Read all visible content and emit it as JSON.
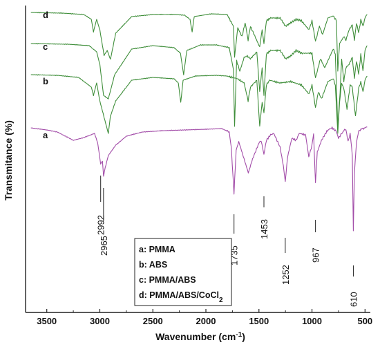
{
  "chart_data": {
    "type": "line",
    "xlabel": "Wavenumber (cm",
    "xlabel_sup": "-1",
    "xlabel_end": ")",
    "ylabel": "Transmitance (%)",
    "xlim": [
      3700,
      450
    ],
    "x_reversed": true,
    "xticks": [
      3500,
      3000,
      2500,
      2000,
      1500,
      1000,
      500
    ],
    "grid": false,
    "colors": {
      "a": "#a24ca8",
      "bcd": "#3f8e3a",
      "axis": "#222222"
    },
    "series": [
      {
        "name": "a",
        "color": "#a24ca8",
        "baseline": 0.0,
        "x": [
          3650,
          3500,
          3400,
          3300,
          3250,
          3150,
          3050,
          3020,
          2992,
          2975,
          2965,
          2950,
          2920,
          2850,
          2750,
          2600,
          2400,
          2200,
          2000,
          1850,
          1780,
          1760,
          1735,
          1715,
          1690,
          1640,
          1600,
          1560,
          1500,
          1480,
          1453,
          1430,
          1390,
          1360,
          1300,
          1270,
          1252,
          1230,
          1190,
          1150,
          1120,
          1060,
          1030,
          1000,
          985,
          967,
          950,
          910,
          860,
          840,
          810,
          770,
          750,
          720,
          700,
          680,
          660,
          640,
          620,
          610,
          600,
          580,
          560,
          540,
          520,
          500,
          480
        ],
        "y": [
          0,
          -3,
          -6,
          -14,
          -18,
          -14,
          -8,
          -22,
          -52,
          -48,
          -70,
          -58,
          -40,
          -25,
          -12,
          -6,
          -4,
          -3,
          -2,
          -1,
          -6,
          -30,
          -95,
          -32,
          -20,
          -45,
          -65,
          -45,
          -22,
          -18,
          -38,
          -18,
          -10,
          -8,
          -28,
          -55,
          -78,
          -42,
          -15,
          -18,
          -8,
          -10,
          -42,
          -25,
          -8,
          -80,
          -35,
          -18,
          -5,
          -2,
          0,
          -5,
          -15,
          -8,
          -4,
          -2,
          -20,
          -8,
          -40,
          -150,
          -65,
          -20,
          -5,
          -2,
          -1,
          0,
          1
        ]
      },
      {
        "name": "b",
        "color": "#3f8e3a",
        "baseline": 0.0,
        "x": [
          3650,
          3400,
          3200,
          3080,
          3060,
          3030,
          3000,
          2920,
          2900,
          2850,
          2700,
          2500,
          2300,
          2260,
          2237,
          2215,
          2100,
          1900,
          1800,
          1700,
          1640,
          1602,
          1580,
          1520,
          1493,
          1470,
          1453,
          1430,
          1400,
          1300,
          1200,
          1100,
          1028,
          1000,
          967,
          940,
          910,
          850,
          800,
          780,
          757,
          740,
          720,
          700,
          670,
          640,
          620,
          590,
          560,
          540,
          520,
          500,
          480
        ],
        "y": [
          0,
          -1,
          -4,
          -18,
          -30,
          -12,
          -38,
          -85,
          -60,
          -38,
          -8,
          -4,
          -6,
          -12,
          -40,
          -8,
          -2,
          -1,
          -2,
          -6,
          -12,
          -38,
          -18,
          -8,
          -75,
          -40,
          -55,
          -15,
          -8,
          -12,
          -10,
          -15,
          -28,
          -15,
          -48,
          -25,
          -35,
          -10,
          -6,
          -15,
          -85,
          -40,
          -12,
          -20,
          -50,
          -15,
          -18,
          -60,
          -20,
          -10,
          -25,
          -8,
          -2
        ]
      },
      {
        "name": "c",
        "color": "#3f8e3a",
        "baseline": 0.0,
        "x": [
          3650,
          3300,
          3100,
          3030,
          3000,
          2965,
          2920,
          2860,
          2700,
          2500,
          2300,
          2240,
          2210,
          2180,
          2050,
          1900,
          1780,
          1740,
          1730,
          1710,
          1680,
          1640,
          1610,
          1580,
          1520,
          1493,
          1470,
          1453,
          1430,
          1390,
          1300,
          1250,
          1200,
          1150,
          1100,
          1000,
          967,
          920,
          880,
          800,
          780,
          757,
          735,
          720,
          700,
          680,
          650,
          620,
          600,
          580,
          560,
          540,
          520,
          500,
          480
        ],
        "y": [
          0,
          -1,
          -3,
          -12,
          -30,
          -75,
          -80,
          -45,
          -8,
          -3,
          -6,
          -14,
          -45,
          -10,
          -2,
          -2,
          -6,
          -38,
          -120,
          -25,
          -40,
          -20,
          -18,
          -22,
          -12,
          -70,
          -35,
          -75,
          -15,
          -10,
          -10,
          -22,
          -18,
          -10,
          -14,
          -14,
          -50,
          -22,
          -35,
          -8,
          -15,
          -120,
          -70,
          -22,
          -55,
          -35,
          -30,
          -20,
          -50,
          -25,
          -45,
          -15,
          -40,
          -10,
          -3
        ]
      },
      {
        "name": "d",
        "color": "#3f8e3a",
        "baseline": 0.0,
        "x": [
          3650,
          3350,
          3150,
          3080,
          3060,
          3030,
          3000,
          2960,
          2930,
          2900,
          2850,
          2700,
          2500,
          2300,
          2200,
          2150,
          2130,
          2110,
          1950,
          1800,
          1740,
          1730,
          1700,
          1660,
          1630,
          1602,
          1580,
          1493,
          1470,
          1453,
          1430,
          1390,
          1300,
          1250,
          1200,
          1150,
          1100,
          1028,
          1000,
          967,
          930,
          900,
          850,
          800,
          770,
          757,
          740,
          700,
          680,
          650,
          620,
          600,
          580,
          560,
          540,
          520,
          500,
          480
        ],
        "y": [
          0,
          -1,
          -3,
          -10,
          -28,
          -10,
          -25,
          -62,
          -55,
          -68,
          -30,
          -6,
          -3,
          -3,
          -4,
          -10,
          -28,
          -6,
          -2,
          -3,
          -20,
          -65,
          -22,
          -35,
          -15,
          -40,
          -20,
          -50,
          -25,
          -45,
          -12,
          -8,
          -8,
          -20,
          -15,
          -10,
          -12,
          -25,
          -12,
          -42,
          -20,
          -32,
          -8,
          -5,
          -12,
          -85,
          -45,
          -35,
          -40,
          -25,
          -18,
          -40,
          -15,
          -30,
          -10,
          -20,
          -8,
          -3
        ]
      }
    ],
    "curve_labels": [
      "a",
      "b",
      "c",
      "d"
    ],
    "peak_annotations": [
      {
        "x": 2992,
        "label": "2992"
      },
      {
        "x": 2965,
        "label": "2965"
      },
      {
        "x": 1735,
        "label": "1735"
      },
      {
        "x": 1453,
        "label": "1453"
      },
      {
        "x": 1252,
        "label": "1252"
      },
      {
        "x": 967,
        "label": "967"
      },
      {
        "x": 610,
        "label": "610"
      }
    ],
    "legend": {
      "placement": "bottom-center",
      "items": [
        {
          "text": "a: PMMA"
        },
        {
          "text": "b: ABS"
        },
        {
          "text": "c: PMMA/ABS"
        },
        {
          "text": "d: PMMA/ABS/CoCl",
          "sub": "2"
        }
      ]
    }
  }
}
